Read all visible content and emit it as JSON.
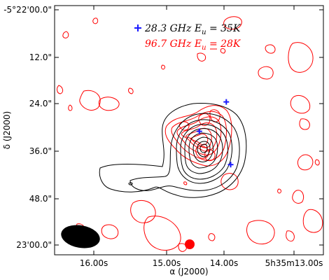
{
  "chart_data": {
    "type": "contour",
    "xlabel": "α (J2000)",
    "ylabel": "δ (J2000)",
    "x_ticks": [
      "16.00s",
      "15.00s",
      "14.00s",
      "5h35m13.00s"
    ],
    "y_ticks": [
      "-5°22'00.0\"",
      "12.0\"",
      "24.0\"",
      "36.0\"",
      "48.0\"",
      "23'00.0\""
    ],
    "series": [
      {
        "name": "28.3 GHz E_u = 35K",
        "color": "#000000",
        "marker": "+",
        "marker_color": "#1a1aff"
      },
      {
        "name": "96.7 GHz E_u = 28K",
        "color": "#ff0000"
      }
    ],
    "legend": {
      "entry1_text": "28.3 GHz E",
      "entry1_sub": "u",
      "entry1_tail": " = 35K",
      "entry2_text": "96.7 GHz E",
      "entry2_sub": "u",
      "entry2_tail": " = 28K"
    },
    "markers_ra_s": [
      14.55,
      14.12,
      14.18
    ],
    "markers_dec_arcsec": [
      31.0,
      39.5,
      23.5
    ],
    "beams": [
      {
        "name": "black-beam",
        "color": "#000000"
      },
      {
        "name": "red-beam",
        "color": "#ff0000"
      }
    ],
    "colors": {
      "black_contour": "#000000",
      "red_contour": "#ff0000",
      "marker": "#1a1aff"
    }
  }
}
